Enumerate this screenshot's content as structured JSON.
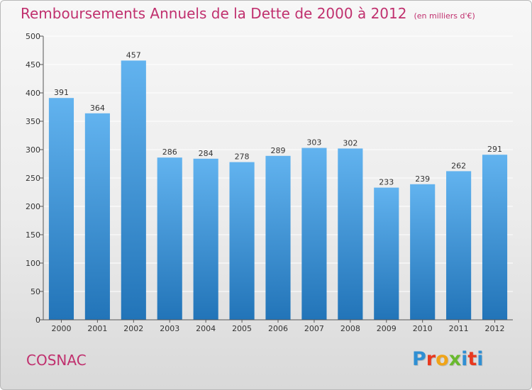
{
  "header": {
    "title": "Remboursements Annuels de la Dette de 2000 à 2012",
    "unit": "(en milliers d'€)"
  },
  "footer": {
    "commune": "COSNAC",
    "logo_text": "Proxiti",
    "logo_colors": [
      "#2f8fd3",
      "#e8391f",
      "#f0a418",
      "#69b92e",
      "#2f8fd3",
      "#e8391f",
      "#2f8fd3"
    ]
  },
  "colors": {
    "title": "#c0306e",
    "bar_top": "#62b3ef",
    "bar_bottom": "#2274b8",
    "grid": "#ffffff",
    "axis": "#555555"
  },
  "chart_data": {
    "type": "bar",
    "title": "Remboursements Annuels de la Dette de 2000 à 2012",
    "subtitle": "(en milliers d'€)",
    "xlabel": "",
    "ylabel": "",
    "categories": [
      "2000",
      "2001",
      "2002",
      "2003",
      "2004",
      "2005",
      "2006",
      "2007",
      "2008",
      "2009",
      "2010",
      "2011",
      "2012"
    ],
    "values": [
      391,
      364,
      457,
      286,
      284,
      278,
      289,
      303,
      302,
      233,
      239,
      262,
      291
    ],
    "ylim": [
      0,
      500
    ],
    "yticks": [
      0,
      50,
      100,
      150,
      200,
      250,
      300,
      350,
      400,
      450,
      500
    ],
    "grid": true,
    "data_labels": true
  }
}
